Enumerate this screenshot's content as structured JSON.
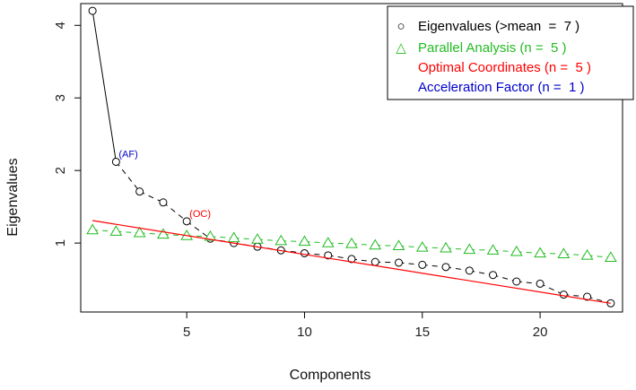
{
  "chart_data": {
    "type": "line",
    "title": "",
    "xlabel": "Components",
    "ylabel": "Eigenvalues",
    "xlim": [
      0.5,
      23.5
    ],
    "ylim": [
      0.05,
      4.3
    ],
    "x_ticks": [
      5,
      10,
      15,
      20
    ],
    "y_ticks": [
      1,
      2,
      3,
      4
    ],
    "grid": false,
    "legend_position": "top-right",
    "legend": [
      {
        "marker": "○",
        "text": "Eigenvalues (>mean  =  7 )",
        "color": "#000000"
      },
      {
        "marker": "△",
        "text": "Parallel Analysis (n =  5 )",
        "color": "#22bb22"
      },
      {
        "marker": "",
        "text": "Optimal Coordinates (n =  5 )",
        "color": "#ff0000"
      },
      {
        "marker": "",
        "text": "Acceleration Factor (n =  1 )",
        "color": "#0000cc"
      }
    ],
    "series": [
      {
        "name": "Eigenvalues",
        "color": "#000000",
        "marker": "circle",
        "x": [
          1,
          2,
          3,
          4,
          5,
          6,
          7,
          8,
          9,
          10,
          11,
          12,
          13,
          14,
          15,
          16,
          17,
          18,
          19,
          20,
          21,
          22,
          23
        ],
        "values": [
          4.2,
          2.12,
          1.71,
          1.56,
          1.3,
          1.06,
          1.0,
          0.95,
          0.9,
          0.86,
          0.83,
          0.78,
          0.74,
          0.73,
          0.7,
          0.67,
          0.62,
          0.56,
          0.47,
          0.44,
          0.29,
          0.26,
          0.17
        ]
      },
      {
        "name": "Parallel Analysis",
        "color": "#22bb22",
        "marker": "triangle",
        "x": [
          1,
          2,
          3,
          4,
          5,
          6,
          7,
          8,
          9,
          10,
          11,
          12,
          13,
          14,
          15,
          16,
          17,
          18,
          19,
          20,
          21,
          22,
          23
        ],
        "values": [
          1.18,
          1.16,
          1.14,
          1.12,
          1.1,
          1.09,
          1.07,
          1.05,
          1.03,
          1.02,
          1.0,
          0.99,
          0.97,
          0.96,
          0.94,
          0.93,
          0.91,
          0.9,
          0.88,
          0.86,
          0.85,
          0.83,
          0.8
        ]
      },
      {
        "name": "Optimal Coordinates",
        "color": "#ff0000",
        "marker": "none",
        "x": [
          1,
          23
        ],
        "values": [
          1.31,
          0.17
        ]
      }
    ],
    "annotations": [
      {
        "text": "(AF)",
        "x": 2,
        "y": 2.12,
        "color": "#0000cc"
      },
      {
        "text": "(OC)",
        "x": 5,
        "y": 1.3,
        "color": "#ff0000"
      }
    ]
  }
}
